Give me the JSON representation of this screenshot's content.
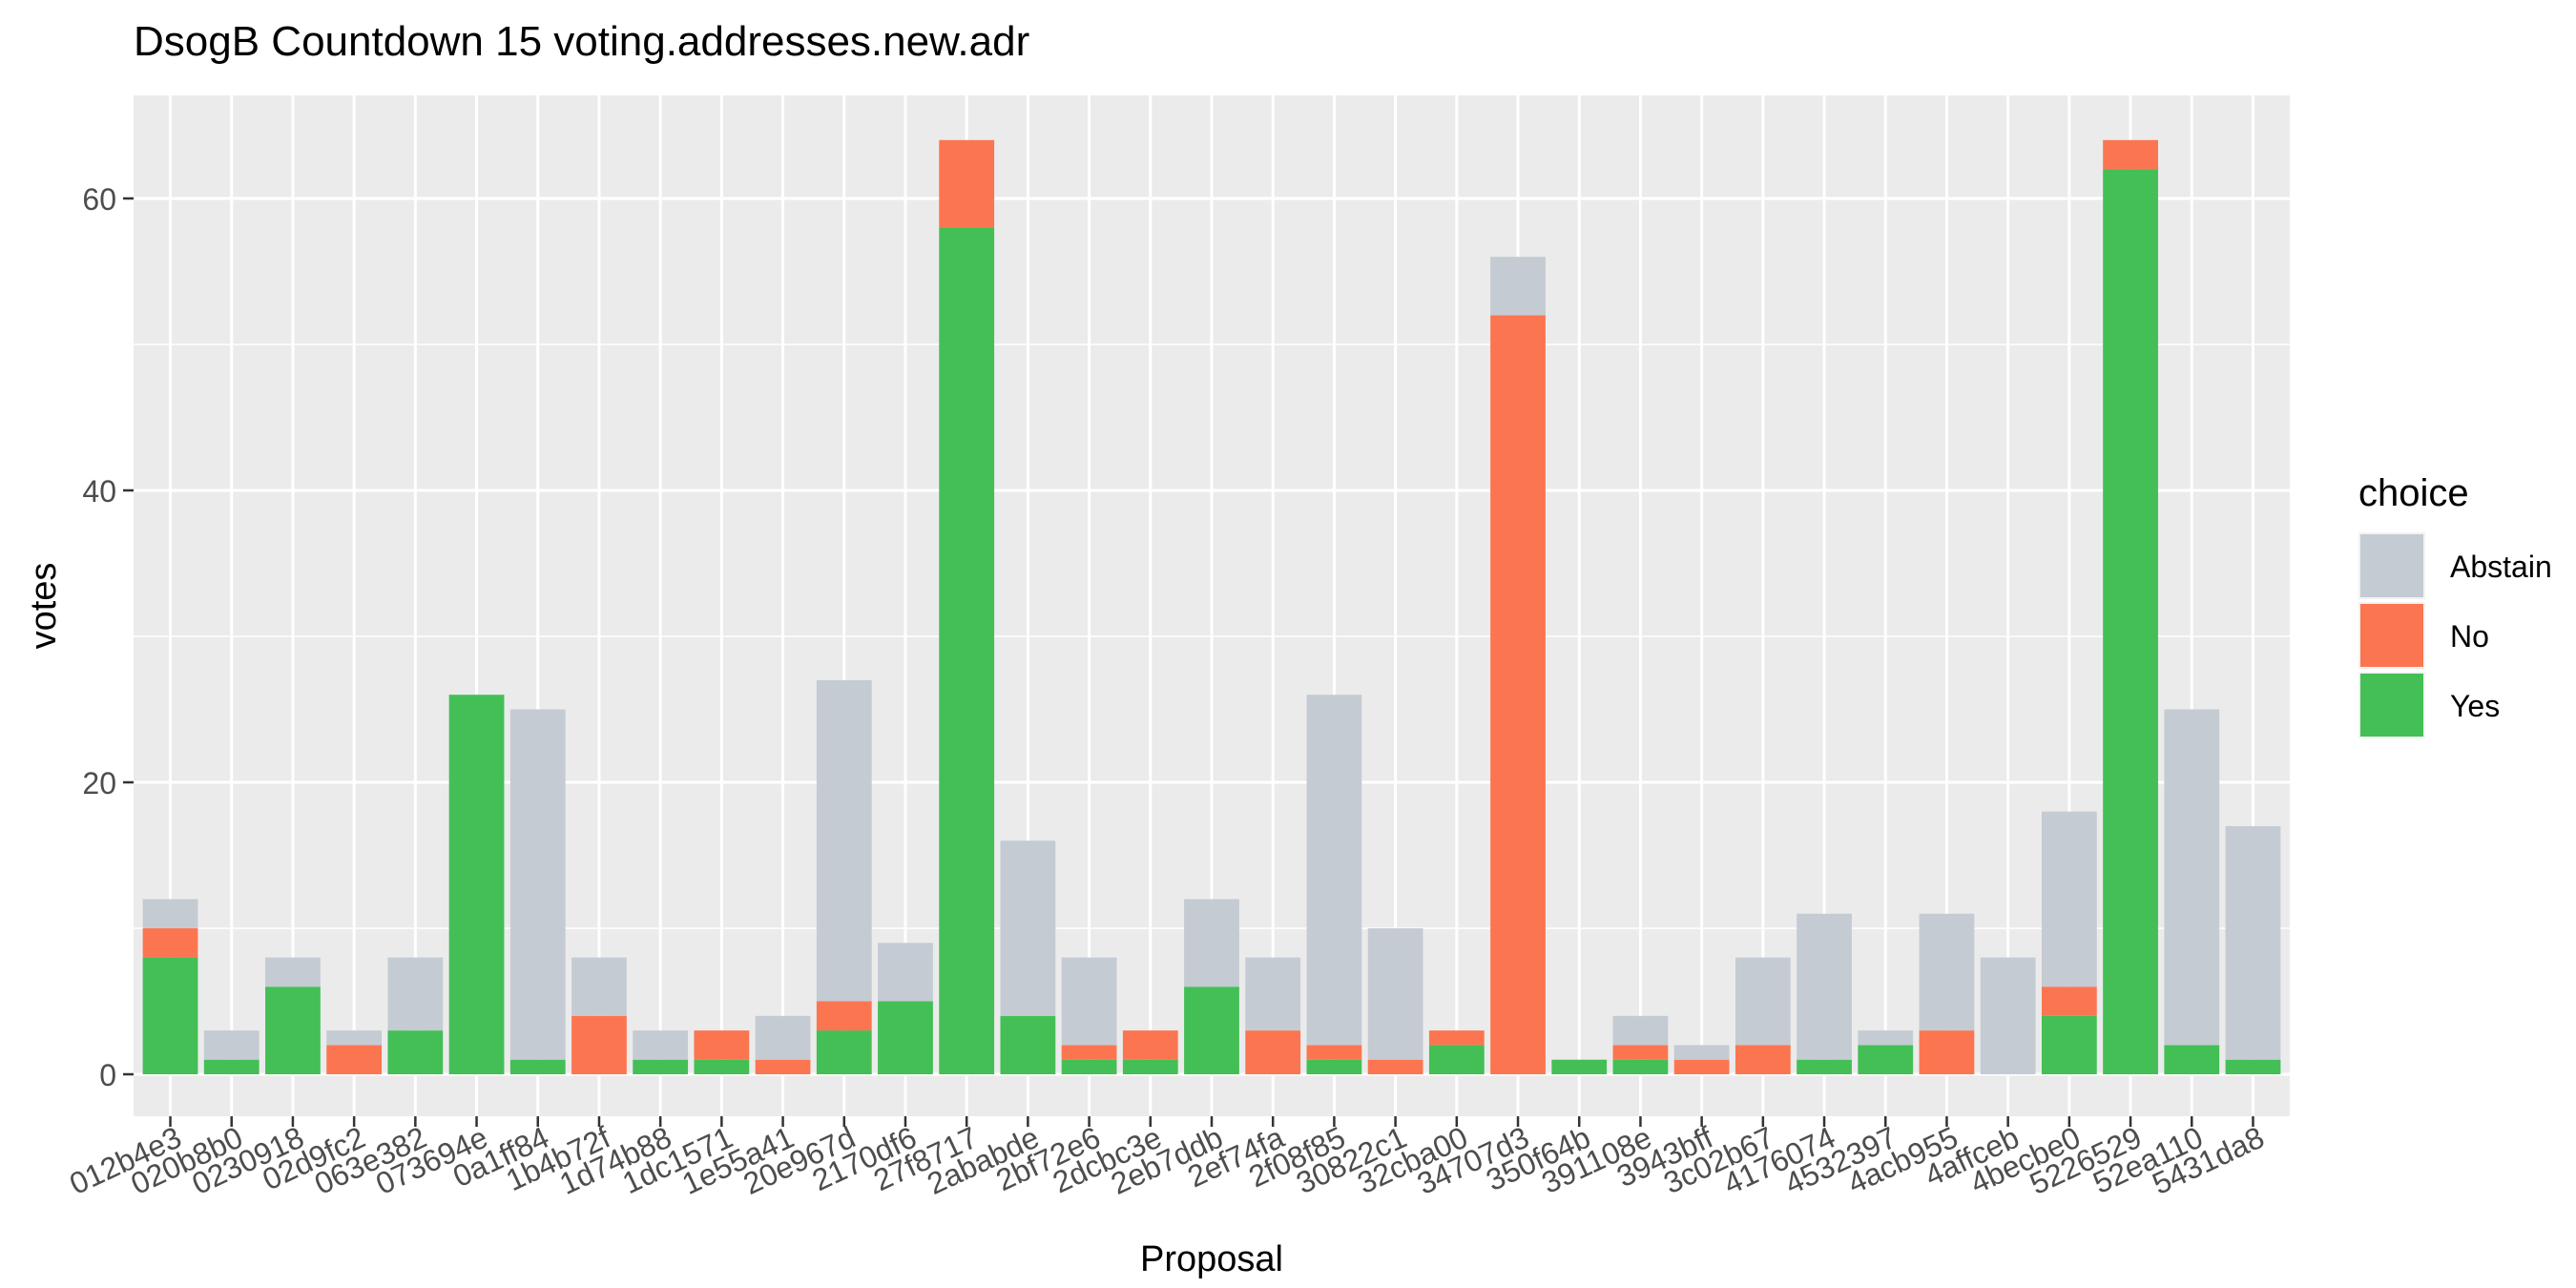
{
  "chart_data": {
    "type": "bar",
    "stacked": true,
    "title": "DsogB  Countdown  15  voting.addresses.new.adr",
    "xlabel": "Proposal",
    "ylabel": "votes",
    "ylim": [
      0,
      67
    ],
    "yticks": [
      0,
      20,
      40,
      60
    ],
    "grid": true,
    "legend": {
      "title": "choice",
      "position": "right"
    },
    "categories": [
      "012b4e3",
      "020b8b0",
      "0230918",
      "02d9fc2",
      "063e382",
      "073694e",
      "0a1ff84",
      "1b4b72f",
      "1d74b88",
      "1dc1571",
      "1e55a41",
      "20e967d",
      "2170df6",
      "27f8717",
      "2ababde",
      "2bf72e6",
      "2dcbc3e",
      "2eb7ddb",
      "2ef74fa",
      "2f08f85",
      "30822c1",
      "32cba00",
      "34707d3",
      "350f64b",
      "391108e",
      "3943bff",
      "3c02b67",
      "4176074",
      "4532397",
      "4acb955",
      "4affceb",
      "4becbe0",
      "5226529",
      "52ea110",
      "5431da8"
    ],
    "series": [
      {
        "name": "Yes",
        "color": "#43BF56",
        "values": [
          8,
          1,
          6,
          0,
          3,
          26,
          1,
          0,
          1,
          1,
          0,
          3,
          5,
          58,
          4,
          1,
          1,
          6,
          0,
          1,
          0,
          2,
          0,
          1,
          1,
          0,
          0,
          1,
          2,
          0,
          0,
          4,
          62,
          2,
          1
        ]
      },
      {
        "name": "No",
        "color": "#FC7551",
        "values": [
          2,
          0,
          0,
          2,
          0,
          0,
          0,
          4,
          0,
          2,
          1,
          2,
          0,
          6,
          0,
          1,
          2,
          0,
          3,
          1,
          1,
          1,
          52,
          0,
          1,
          1,
          2,
          0,
          0,
          3,
          0,
          2,
          2,
          0,
          0
        ]
      },
      {
        "name": "Abstain",
        "color": "#C5CBD3",
        "values": [
          2,
          2,
          2,
          1,
          5,
          0,
          24,
          4,
          2,
          0,
          3,
          22,
          4,
          0,
          12,
          6,
          0,
          6,
          5,
          24,
          9,
          0,
          4,
          0,
          2,
          1,
          6,
          10,
          1,
          8,
          8,
          12,
          0,
          23,
          16
        ]
      }
    ],
    "legend_order": [
      "Abstain",
      "No",
      "Yes"
    ]
  }
}
